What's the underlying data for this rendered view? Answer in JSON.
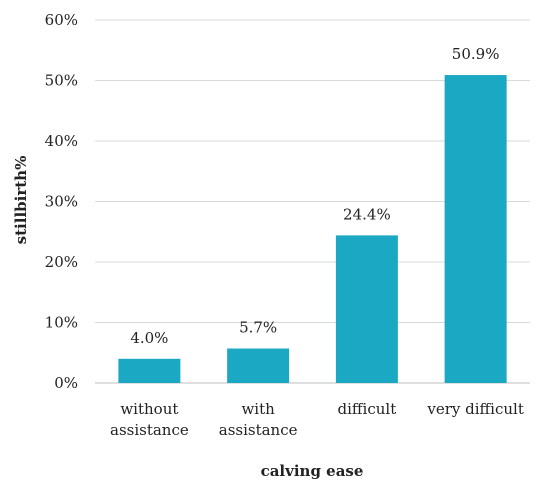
{
  "chart_data": {
    "type": "bar",
    "categories": [
      [
        "without",
        "assistance"
      ],
      [
        "with",
        "assistance"
      ],
      [
        "difficult"
      ],
      [
        "very difficult"
      ]
    ],
    "values": [
      4.0,
      5.7,
      24.4,
      50.9
    ],
    "data_labels": [
      "4.0%",
      "5.7%",
      "24.4%",
      "50.9%"
    ],
    "xlabel": "calving ease",
    "ylabel": "stillbirth%",
    "ylim": [
      0,
      60
    ],
    "y_ticks": [
      0,
      10,
      20,
      30,
      40,
      50,
      60
    ],
    "y_tick_labels": [
      "0%",
      "10%",
      "20%",
      "30%",
      "40%",
      "50%",
      "60%"
    ],
    "grid": "horizontal",
    "legend": "none",
    "bar_color": "#1aa8c2",
    "grid_color": "#d9d9d9",
    "axis_color": "#bfbfbf"
  }
}
